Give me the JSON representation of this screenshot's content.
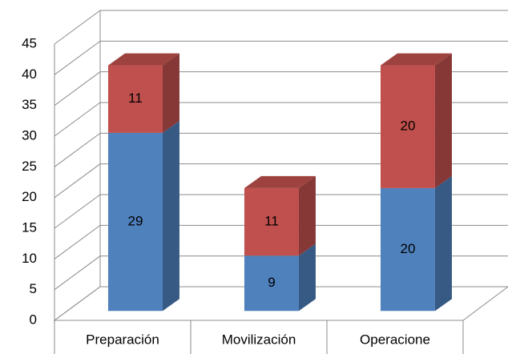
{
  "chart_data": {
    "type": "bar3d_stacked",
    "categories": [
      "Preparación",
      "Movilización",
      "Operacione"
    ],
    "series": [
      {
        "color": "#4f81bd",
        "values": [
          29,
          9,
          20
        ]
      },
      {
        "color": "#c0504d",
        "values": [
          11,
          11,
          20
        ]
      }
    ],
    "ylim": [
      0,
      45
    ],
    "yticks": [
      0,
      5,
      10,
      15,
      20,
      25,
      30,
      35,
      40,
      45
    ],
    "grid": true
  }
}
